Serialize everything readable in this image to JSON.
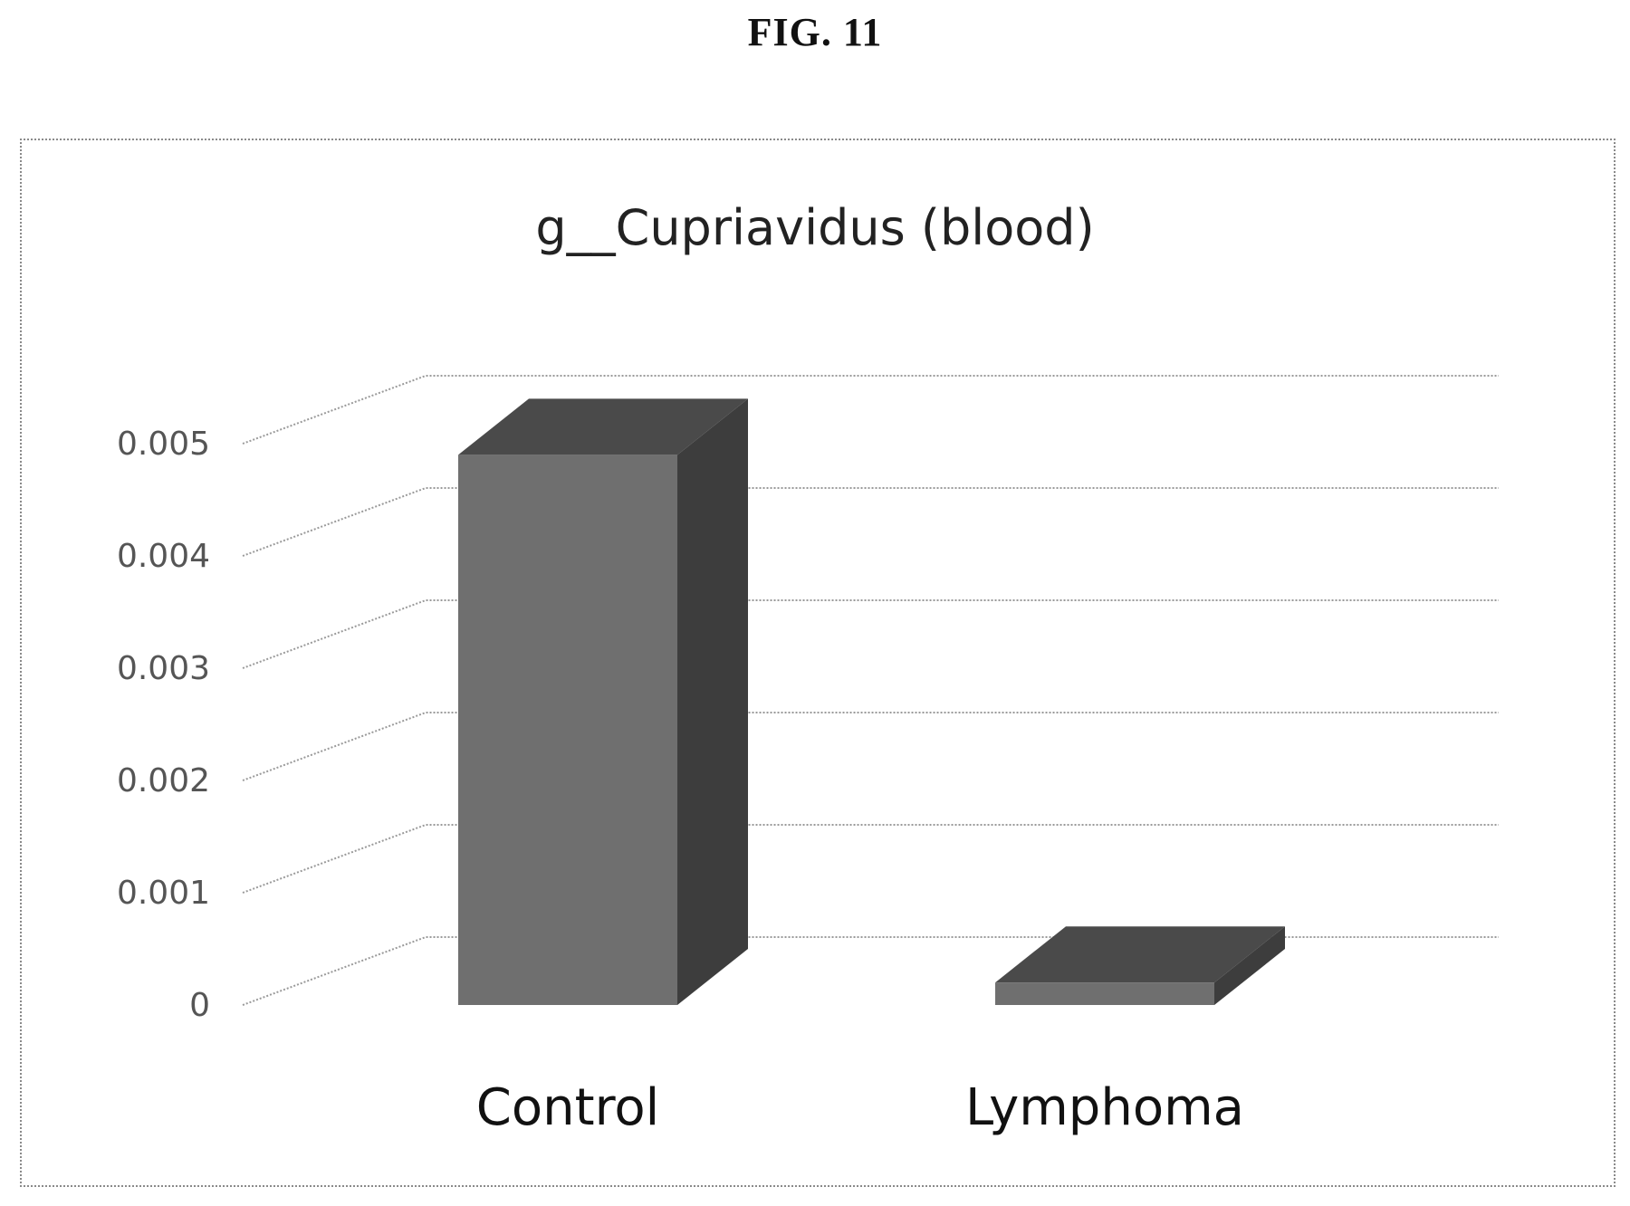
{
  "figure_label": "FIG. 11",
  "chart_data": {
    "type": "bar",
    "style": "3d-column",
    "title": "g__Cupriavidus (blood)",
    "xlabel": "",
    "ylabel": "",
    "categories": [
      "Control",
      "Lymphoma"
    ],
    "values": [
      0.0049,
      0.0002
    ],
    "ylim": [
      0,
      0.006
    ],
    "yticks": [
      0,
      0.001,
      0.002,
      0.003,
      0.004,
      0.005
    ],
    "ytick_labels": [
      "0",
      "0.001",
      "0.002",
      "0.003",
      "0.004",
      "0.005"
    ],
    "grid": true,
    "legend": "none",
    "colors": {
      "bar_front": "#6f6f6f",
      "bar_top": "#4a4a4a",
      "bar_side": "#3d3d3d"
    }
  }
}
